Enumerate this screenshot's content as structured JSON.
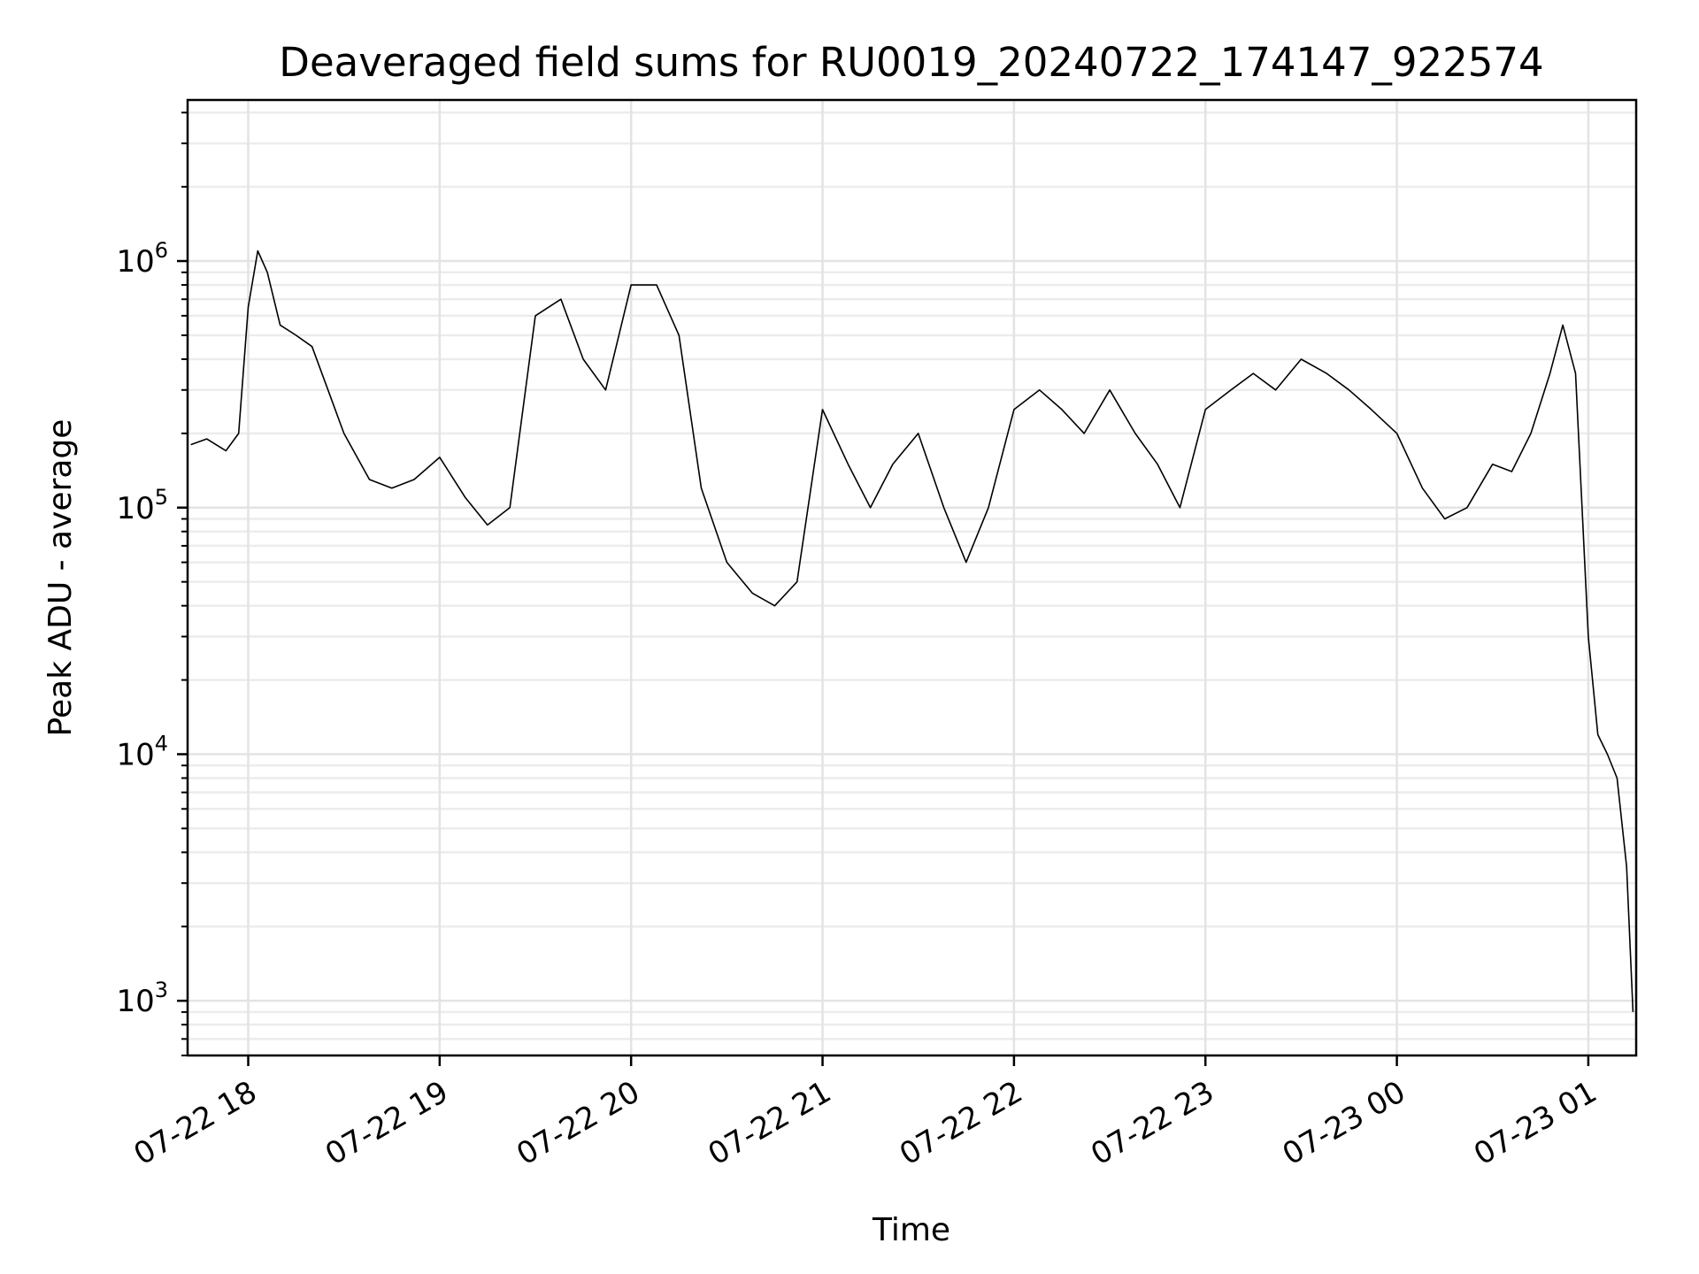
{
  "chart_data": {
    "type": "line",
    "title": "Deaveraged field sums for RU0019_20240722_174147_922574",
    "xlabel": "Time",
    "ylabel": "Peak ADU - average",
    "yscale": "log",
    "ylim": [
      600,
      4500000
    ],
    "xlim": [
      "2024-07-22 17:41",
      "2024-07-23 01:15"
    ],
    "grid": true,
    "line_color": "#000000",
    "x_ticks": [
      {
        "time": "2024-07-22 18:00",
        "label": "07-22 18"
      },
      {
        "time": "2024-07-22 19:00",
        "label": "07-22 19"
      },
      {
        "time": "2024-07-22 20:00",
        "label": "07-22 20"
      },
      {
        "time": "2024-07-22 21:00",
        "label": "07-22 21"
      },
      {
        "time": "2024-07-22 22:00",
        "label": "07-22 22"
      },
      {
        "time": "2024-07-22 23:00",
        "label": "07-22 23"
      },
      {
        "time": "2024-07-23 00:00",
        "label": "07-23 00"
      },
      {
        "time": "2024-07-23 01:00",
        "label": "07-23 01"
      }
    ],
    "y_ticks": [
      {
        "value": 1000,
        "base": "10",
        "exp": "3"
      },
      {
        "value": 10000,
        "base": "10",
        "exp": "4"
      },
      {
        "value": 100000,
        "base": "10",
        "exp": "5"
      },
      {
        "value": 1000000,
        "base": "10",
        "exp": "6"
      }
    ],
    "series": [
      {
        "x": [
          "2024-07-22 17:42",
          "2024-07-22 17:47",
          "2024-07-22 17:53",
          "2024-07-22 17:57",
          "2024-07-22 18:00",
          "2024-07-22 18:03",
          "2024-07-22 18:06",
          "2024-07-22 18:10",
          "2024-07-22 18:15",
          "2024-07-22 18:20",
          "2024-07-22 18:25",
          "2024-07-22 18:30",
          "2024-07-22 18:38",
          "2024-07-22 18:45",
          "2024-07-22 18:52",
          "2024-07-22 19:00",
          "2024-07-22 19:08",
          "2024-07-22 19:15",
          "2024-07-22 19:22",
          "2024-07-22 19:30",
          "2024-07-22 19:38",
          "2024-07-22 19:45",
          "2024-07-22 19:52",
          "2024-07-22 20:00",
          "2024-07-22 20:08",
          "2024-07-22 20:15",
          "2024-07-22 20:22",
          "2024-07-22 20:30",
          "2024-07-22 20:38",
          "2024-07-22 20:45",
          "2024-07-22 20:52",
          "2024-07-22 21:00",
          "2024-07-22 21:08",
          "2024-07-22 21:15",
          "2024-07-22 21:22",
          "2024-07-22 21:30",
          "2024-07-22 21:38",
          "2024-07-22 21:45",
          "2024-07-22 21:52",
          "2024-07-22 22:00",
          "2024-07-22 22:08",
          "2024-07-22 22:15",
          "2024-07-22 22:22",
          "2024-07-22 22:30",
          "2024-07-22 22:38",
          "2024-07-22 22:45",
          "2024-07-22 22:52",
          "2024-07-22 23:00",
          "2024-07-22 23:08",
          "2024-07-22 23:15",
          "2024-07-22 23:22",
          "2024-07-22 23:30",
          "2024-07-22 23:38",
          "2024-07-22 23:45",
          "2024-07-22 23:52",
          "2024-07-23 00:00",
          "2024-07-23 00:08",
          "2024-07-23 00:15",
          "2024-07-23 00:22",
          "2024-07-23 00:30",
          "2024-07-23 00:36",
          "2024-07-23 00:42",
          "2024-07-23 00:48",
          "2024-07-23 00:52",
          "2024-07-23 00:56",
          "2024-07-23 01:00",
          "2024-07-23 01:03",
          "2024-07-23 01:06",
          "2024-07-23 01:09",
          "2024-07-23 01:12",
          "2024-07-23 01:14"
        ],
        "y": [
          180000,
          190000,
          170000,
          200000,
          650000,
          1100000,
          900000,
          550000,
          500000,
          450000,
          300000,
          200000,
          130000,
          120000,
          130000,
          160000,
          110000,
          85000,
          100000,
          600000,
          700000,
          400000,
          300000,
          800000,
          800000,
          500000,
          120000,
          60000,
          45000,
          40000,
          50000,
          250000,
          150000,
          100000,
          150000,
          200000,
          100000,
          60000,
          100000,
          250000,
          300000,
          250000,
          200000,
          300000,
          200000,
          150000,
          100000,
          250000,
          300000,
          350000,
          300000,
          400000,
          350000,
          300000,
          250000,
          200000,
          120000,
          90000,
          100000,
          150000,
          140000,
          200000,
          350000,
          550000,
          350000,
          30000,
          12000,
          10000,
          8000,
          3500,
          900
        ]
      }
    ]
  }
}
